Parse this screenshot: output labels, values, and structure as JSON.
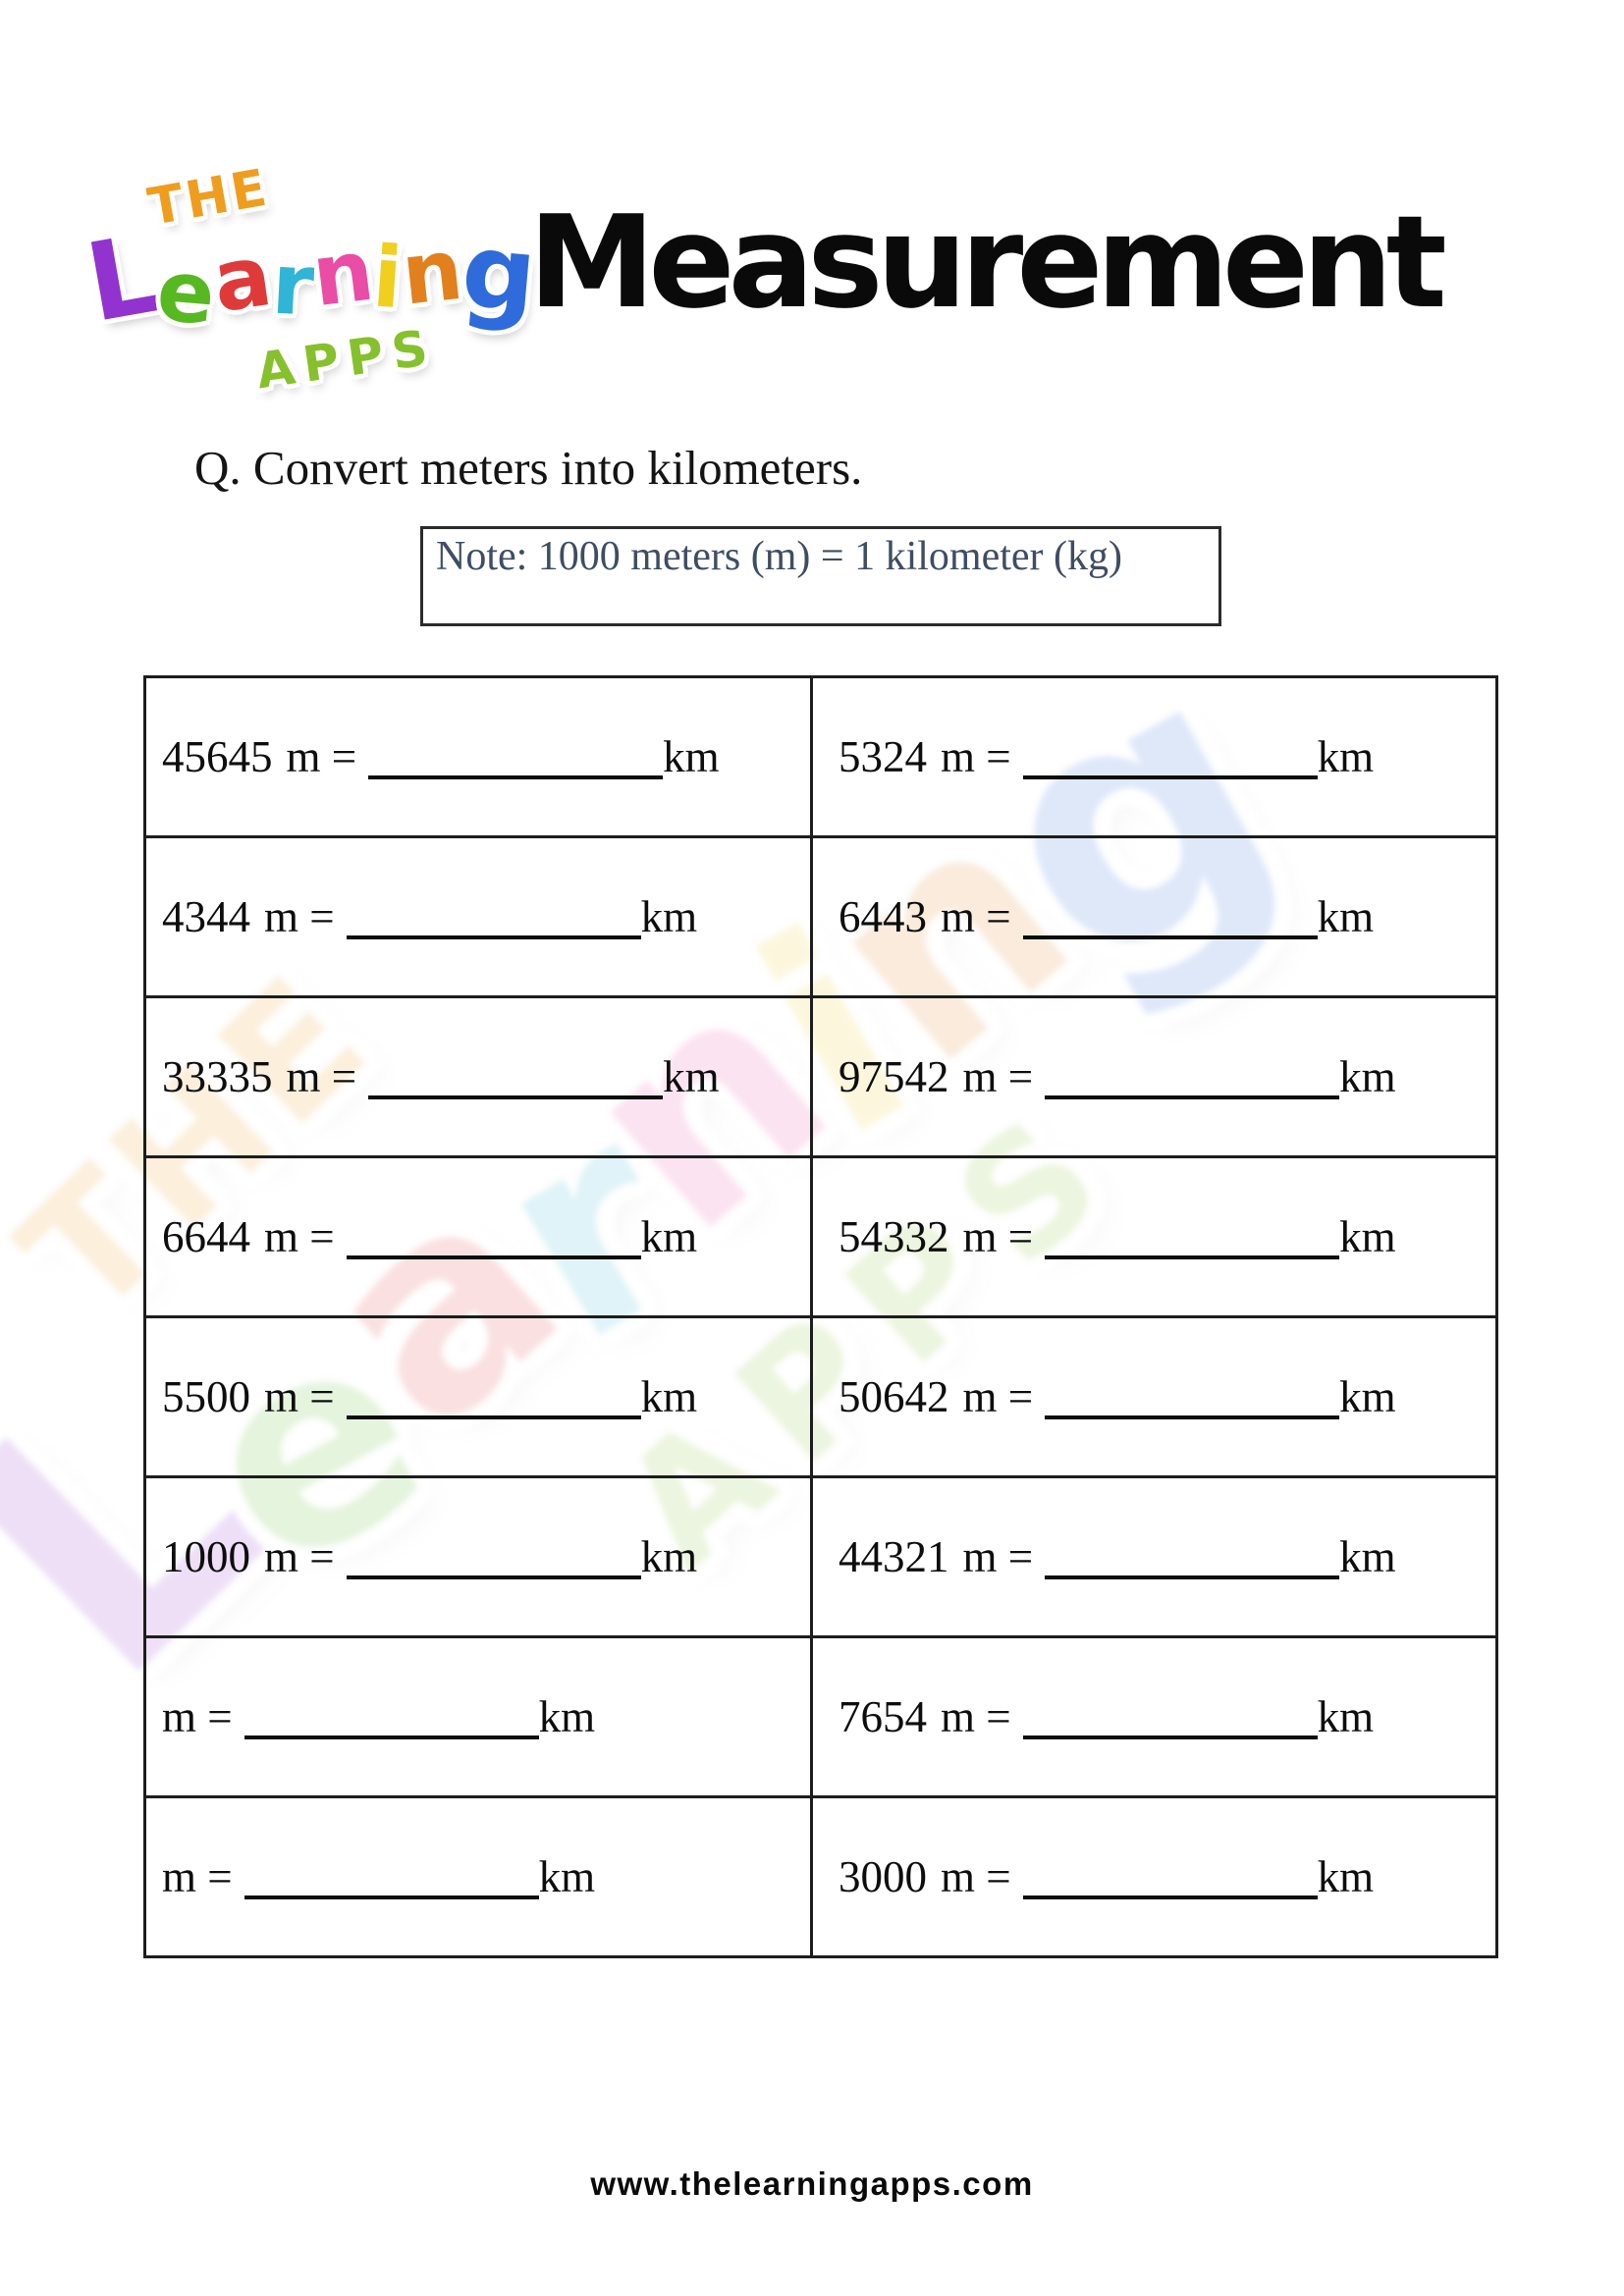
{
  "page": {
    "title": "Measurement",
    "question": "Q. Convert meters into kilometers.",
    "note": "Note: 1000 meters (m) = 1 kilometer (kg)",
    "footer": "www.thelearningapps.com"
  },
  "logo": {
    "the": "THE",
    "the_color": "#ef9d1f",
    "learning": [
      {
        "ch": "L",
        "color": "#9233cf"
      },
      {
        "ch": "e",
        "color": "#58b821"
      },
      {
        "ch": "a",
        "color": "#df3a3a"
      },
      {
        "ch": "r",
        "color": "#31b5d6"
      },
      {
        "ch": "n",
        "color": "#ea4da5"
      },
      {
        "ch": "i",
        "color": "#f0cf1f"
      },
      {
        "ch": "n",
        "color": "#e2801d"
      },
      {
        "ch": "g",
        "color": "#2f6bdb"
      }
    ],
    "apps": "APPS",
    "apps_color": "#86c12d"
  },
  "labels": {
    "m_eq": "m =",
    "km": "km"
  },
  "table": {
    "rows": [
      {
        "left": "45645",
        "right": "5324"
      },
      {
        "left": "4344",
        "right": "6443"
      },
      {
        "left": "33335",
        "right": "97542"
      },
      {
        "left": "6644",
        "right": "54332"
      },
      {
        "left": "5500",
        "right": "50642"
      },
      {
        "left": "1000",
        "right": "44321"
      },
      {
        "left": "",
        "right": "7654"
      },
      {
        "left": "",
        "right": "3000"
      }
    ]
  },
  "colors": {
    "note_text": "#3f4d63",
    "ink": "#0d0d0d"
  }
}
